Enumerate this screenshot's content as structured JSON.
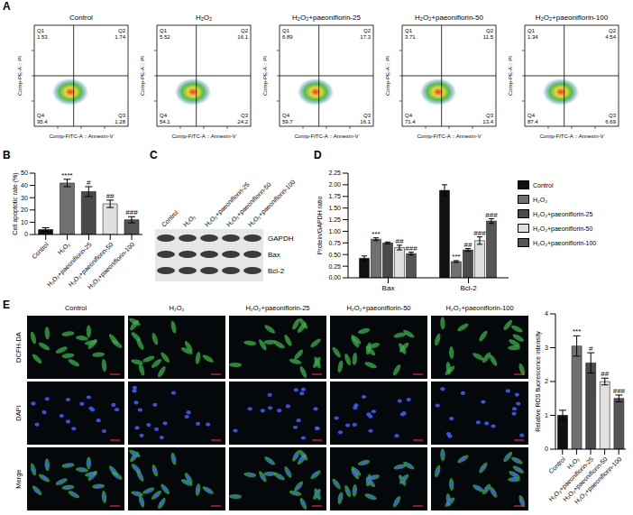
{
  "panel_labels": [
    "A",
    "B",
    "C",
    "D",
    "E"
  ],
  "flow_cytometry": {
    "x_label": "Comp-FITC-A :: Annexin-V",
    "y_label": "Comp-PE-A :: PI",
    "tick_labels": false,
    "panels": [
      {
        "title": "Control",
        "quadrants": [
          {
            "name": "Q1",
            "value": 1.53
          },
          {
            "name": "Q2",
            "value": 1.74
          },
          {
            "name": "Q3",
            "value": 1.28
          },
          {
            "name": "Q4",
            "value": 95.4
          }
        ]
      },
      {
        "title": "H₂O₂",
        "quadrants": [
          {
            "name": "Q1",
            "value": 5.52
          },
          {
            "name": "Q2",
            "value": 16.1
          },
          {
            "name": "Q3",
            "value": 24.2
          },
          {
            "name": "Q4",
            "value": 54.1
          }
        ]
      },
      {
        "title": "H₂O₂+paeoniflorin-25",
        "quadrants": [
          {
            "name": "Q1",
            "value": 6.89
          },
          {
            "name": "Q2",
            "value": 17.3
          },
          {
            "name": "Q3",
            "value": 16.1
          },
          {
            "name": "Q4",
            "value": 59.7
          }
        ]
      },
      {
        "title": "H₂O₂+paeoniflorin-50",
        "quadrants": [
          {
            "name": "Q1",
            "value": 3.71
          },
          {
            "name": "Q2",
            "value": 11.5
          },
          {
            "name": "Q3",
            "value": 13.4
          },
          {
            "name": "Q4",
            "value": 71.4
          }
        ]
      },
      {
        "title": "H₂O₂+paeoniflorin-100",
        "quadrants": [
          {
            "name": "Q1",
            "value": 1.34
          },
          {
            "name": "Q2",
            "value": 4.54
          },
          {
            "name": "Q3",
            "value": 6.69
          },
          {
            "name": "Q4",
            "value": 87.4
          }
        ]
      }
    ]
  },
  "chart_data": [
    {
      "type": "bar",
      "y_label": "Cell apoptotic rate (%)",
      "categories": [
        "Control",
        "H₂O₂",
        "H₂O₂+paeoniflorin-25",
        "H₂O₂+paeoniflorin-50",
        "H₂O₂+paeoniflorin-100"
      ],
      "values": [
        4,
        42,
        35,
        25,
        12
      ],
      "errors": [
        1.5,
        3,
        4,
        3,
        2.5
      ],
      "significance": [
        null,
        "****",
        "#",
        "##",
        "###"
      ],
      "colors": [
        "#111111",
        "#707070",
        "#4a4a4a",
        "#e0e0e0",
        "#555555"
      ],
      "ylim": [
        0,
        50
      ],
      "yticks": [
        0,
        10,
        20,
        30,
        40,
        50
      ]
    },
    {
      "type": "bar",
      "y_label": "Protein/GAPDH ratio",
      "categories": [
        "Bax",
        "Bcl-2"
      ],
      "series": [
        {
          "name": "Control",
          "color": "#111111",
          "values": [
            0.42,
            1.88
          ],
          "errors": [
            0.05,
            0.12
          ],
          "significance": [
            null,
            null
          ]
        },
        {
          "name": "H₂O₂",
          "color": "#707070",
          "values": [
            0.83,
            0.35
          ],
          "errors": [
            0.03,
            0.02
          ],
          "significance": [
            "***",
            "***"
          ]
        },
        {
          "name": "H₂O₂+paeoniflorin-25",
          "color": "#4a4a4a",
          "values": [
            0.75,
            0.6
          ],
          "errors": [
            0.02,
            0.03
          ],
          "significance": [
            null,
            "##"
          ]
        },
        {
          "name": "H₂O₂+paeoniflorin-50",
          "color": "#e0e0e0",
          "values": [
            0.65,
            0.8
          ],
          "errors": [
            0.05,
            0.08
          ],
          "significance": [
            "##",
            "###"
          ]
        },
        {
          "name": "H₂O₂+paeoniflorin-100",
          "color": "#555555",
          "values": [
            0.52,
            1.22
          ],
          "errors": [
            0.03,
            0.05
          ],
          "significance": [
            "###",
            "###"
          ]
        }
      ],
      "ylim": [
        0,
        2.25
      ],
      "yticks": [
        {
          "value": 0,
          "label": "0.00"
        },
        {
          "value": 0.25,
          "label": "0.25"
        },
        {
          "value": 0.5,
          "label": "0.50"
        },
        {
          "value": 0.75,
          "label": "0.75"
        },
        {
          "value": 1,
          "label": "1.00"
        },
        {
          "value": 1.25,
          "label": "1.25"
        },
        {
          "value": 1.5,
          "label": "1.50"
        },
        {
          "value": 1.75,
          "label": "1.75"
        },
        {
          "value": 2,
          "label": "2.00"
        },
        {
          "value": 2.25,
          "label": "2.25"
        }
      ],
      "legend": "right"
    },
    {
      "type": "bar",
      "y_label": "Relative ROS fluorescence intensity",
      "categories": [
        "Control",
        "H₂O₂",
        "H₂O₂+paeoniflorin-25",
        "H₂O₂+paeoniflorin-50",
        "H₂O₂+paeoniflorin-100"
      ],
      "values": [
        1,
        3.05,
        2.55,
        2,
        1.5
      ],
      "errors": [
        0.15,
        0.3,
        0.3,
        0.1,
        0.1
      ],
      "significance": [
        null,
        "***",
        "#",
        "##",
        "###"
      ],
      "colors": [
        "#111111",
        "#707070",
        "#4a4a4a",
        "#e0e0e0",
        "#555555"
      ],
      "ylim": [
        0,
        4
      ],
      "yticks": [
        0,
        1,
        2,
        3,
        4
      ]
    }
  ],
  "western_blot": {
    "lanes": [
      "Control",
      "H₂O₂",
      "H₂O₂+paeoniflorin-25",
      "H₂O₂+paeoniflorin-50",
      "H₂O₂+paeoniflorin-100"
    ],
    "bands": [
      "GAPDH",
      "Bax",
      "Bcl-2"
    ]
  },
  "microscopy": {
    "columns": [
      "Control",
      "H₂O₂",
      "H₂O₂+paeoniflorin-25",
      "H₂O₂+paeoniflorin-50",
      "H₂O₂+paeoniflorin-100"
    ],
    "rows": [
      "DCFH-DA",
      "DAPI",
      "Merge"
    ]
  }
}
